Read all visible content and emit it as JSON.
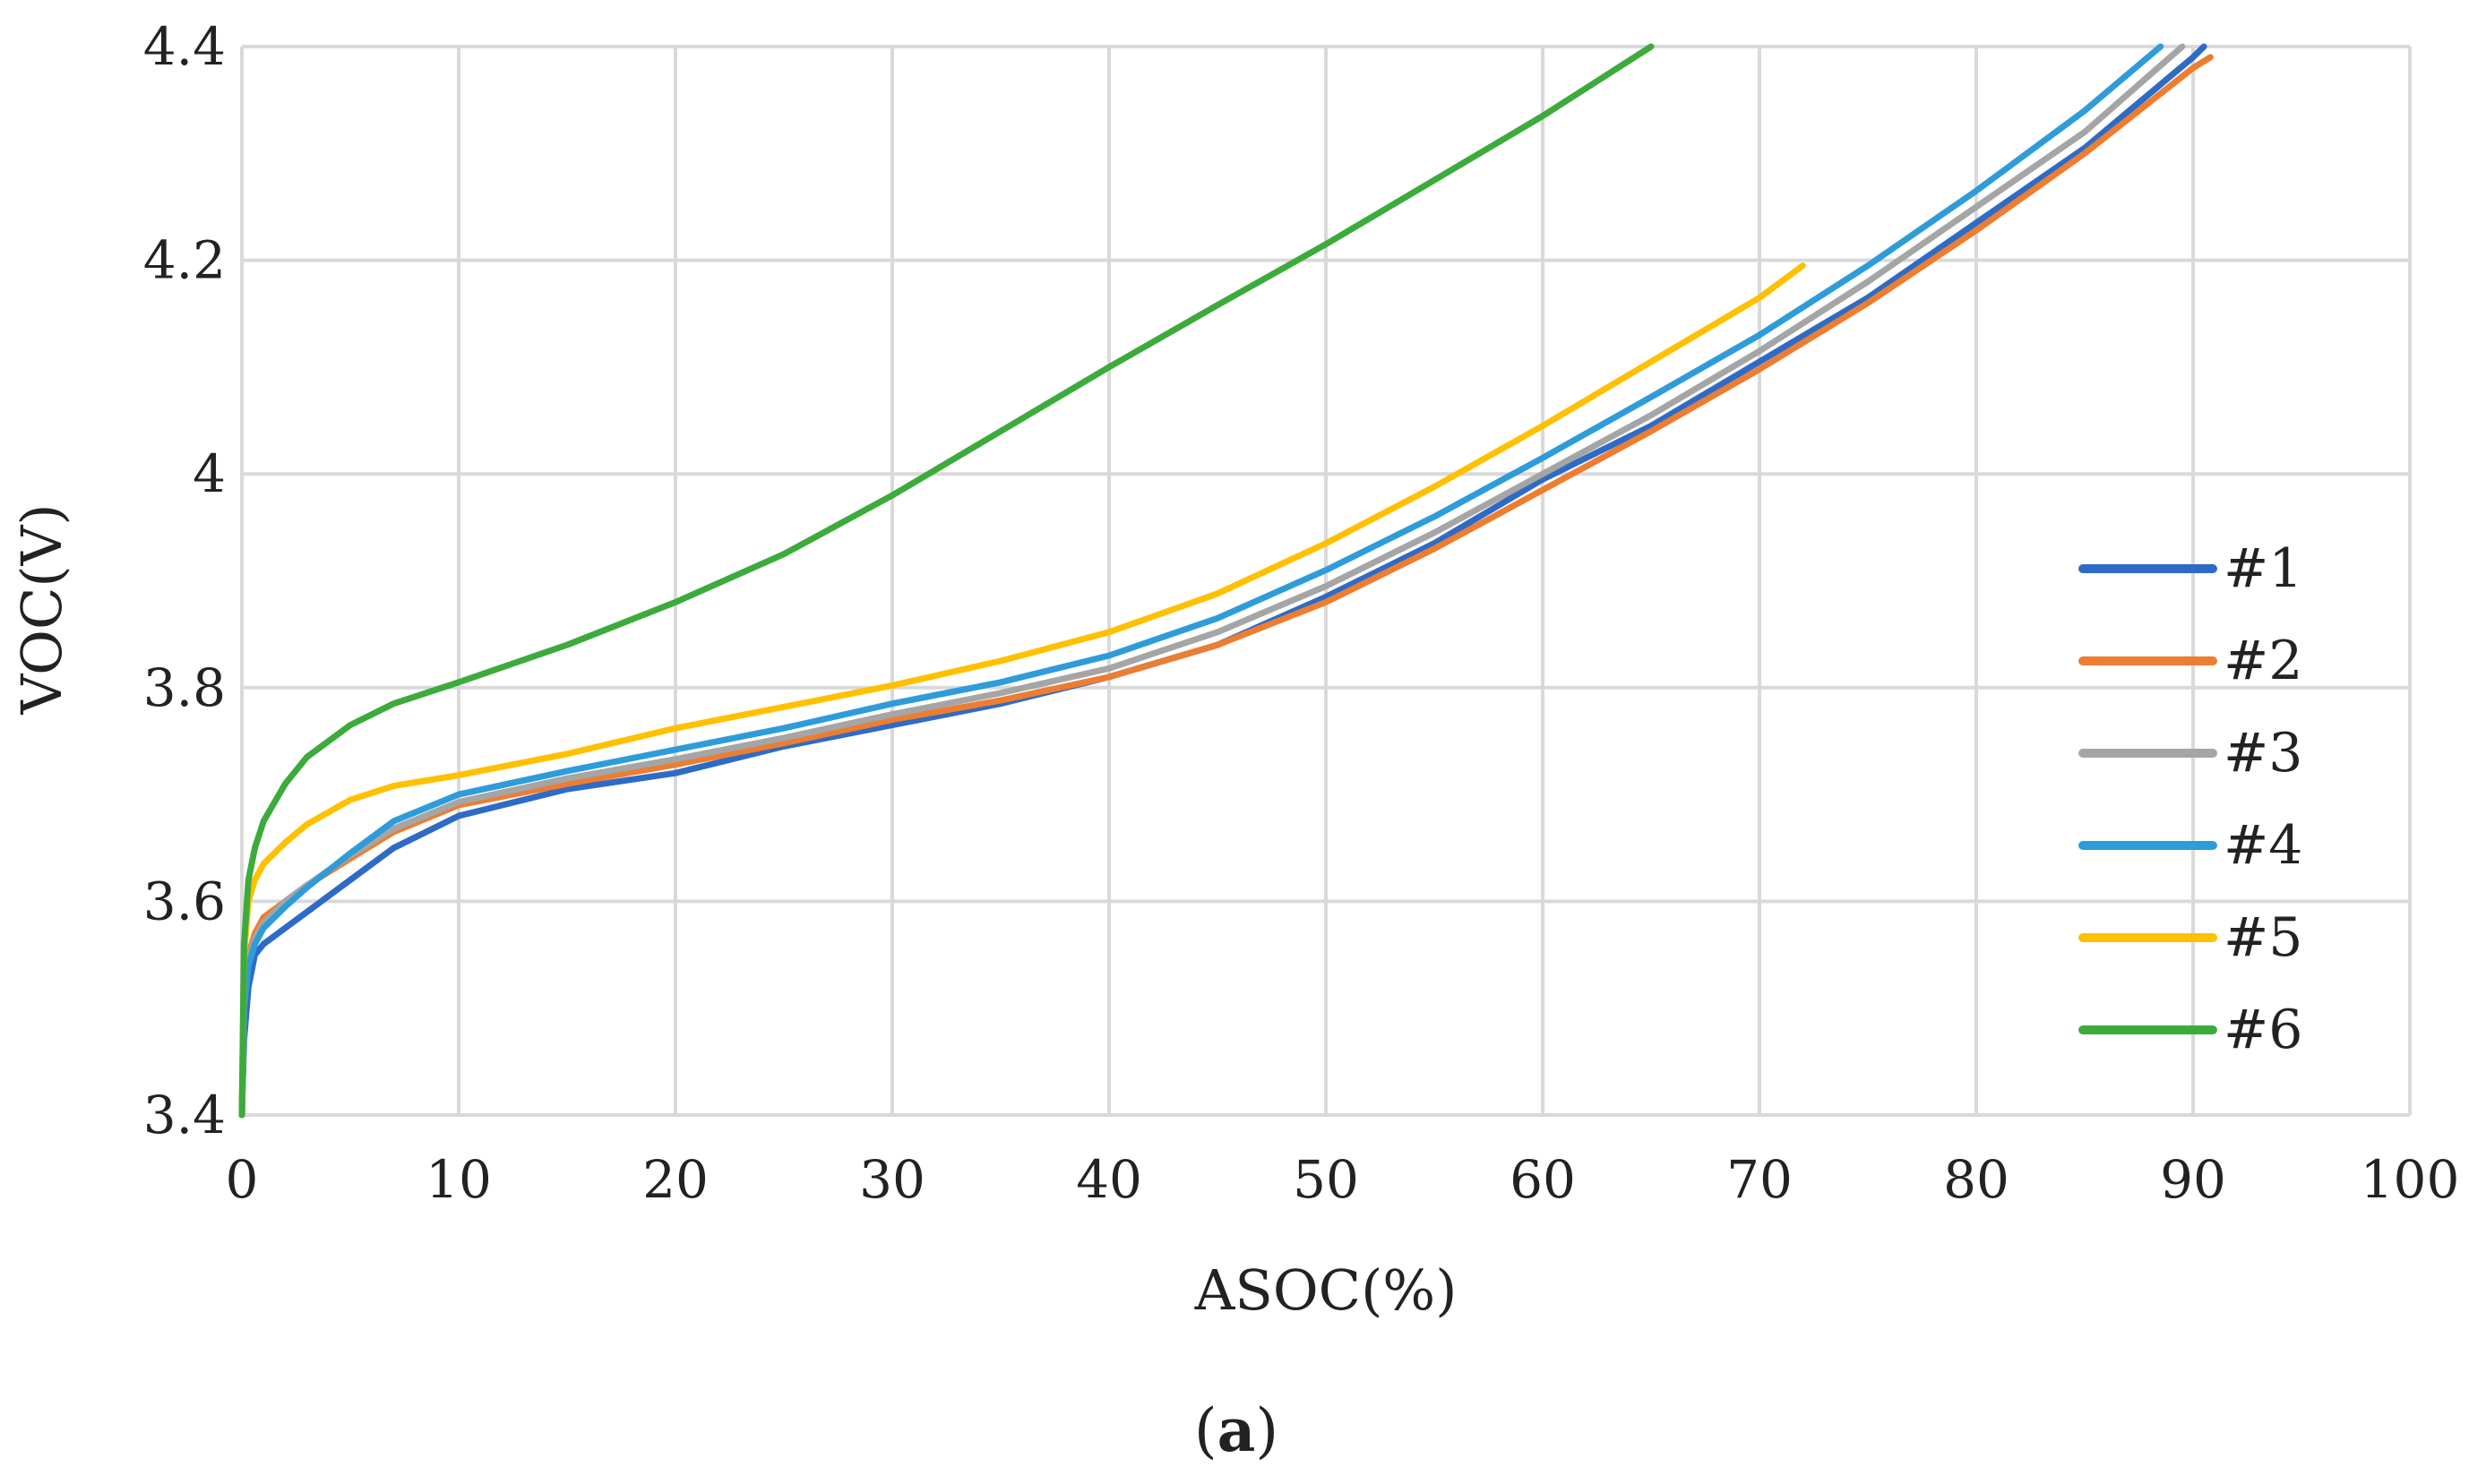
{
  "chart_data": {
    "type": "line",
    "title": "",
    "xlabel": "ASOC(%)",
    "ylabel": "VOC(V)",
    "xlim": [
      0,
      100
    ],
    "ylim": [
      3.4,
      4.4
    ],
    "x_ticks": [
      0,
      10,
      20,
      30,
      40,
      50,
      60,
      70,
      80,
      90,
      100
    ],
    "y_ticks": [
      3.4,
      3.6,
      3.8,
      4,
      4.2,
      4.4
    ],
    "x_tick_labels": [
      "0",
      "10",
      "20",
      "30",
      "40",
      "50",
      "60",
      "70",
      "80",
      "90",
      "100"
    ],
    "y_tick_labels": [
      "3.4",
      "3.6",
      "3.8",
      "4",
      "4.2",
      "4.4"
    ],
    "grid": true,
    "legend_position": "right",
    "caption_open": "(",
    "caption_letter": "a",
    "caption_close": ")",
    "series": [
      {
        "name": "#1",
        "color": "#2e6bc6",
        "x": [
          0,
          0.1,
          0.3,
          0.6,
          1,
          2,
          3,
          5,
          7,
          10,
          15,
          20,
          25,
          30,
          35,
          40,
          45,
          50,
          55,
          60,
          65,
          70,
          75,
          80,
          85,
          90,
          90.5
        ],
        "y": [
          3.4,
          3.47,
          3.52,
          3.55,
          3.56,
          3.575,
          3.59,
          3.62,
          3.65,
          3.68,
          3.705,
          3.72,
          3.745,
          3.765,
          3.785,
          3.81,
          3.84,
          3.885,
          3.935,
          3.995,
          4.045,
          4.105,
          4.165,
          4.235,
          4.305,
          4.39,
          4.4
        ]
      },
      {
        "name": "#2",
        "color": "#ed7d31",
        "x": [
          0,
          0.1,
          0.3,
          0.6,
          1,
          2,
          3,
          5,
          7,
          10,
          15,
          20,
          25,
          30,
          35,
          40,
          45,
          50,
          55,
          60,
          65,
          70,
          75,
          80,
          85,
          90,
          90.8
        ],
        "y": [
          3.4,
          3.5,
          3.55,
          3.57,
          3.585,
          3.6,
          3.615,
          3.64,
          3.665,
          3.69,
          3.71,
          3.728,
          3.748,
          3.77,
          3.788,
          3.81,
          3.84,
          3.88,
          3.93,
          3.985,
          4.04,
          4.098,
          4.16,
          4.228,
          4.3,
          4.38,
          4.39
        ]
      },
      {
        "name": "#3",
        "color": "#a5a5a5",
        "x": [
          0,
          0.1,
          0.3,
          0.6,
          1,
          2,
          3,
          5,
          7,
          10,
          15,
          20,
          25,
          30,
          35,
          40,
          45,
          50,
          55,
          60,
          65,
          70,
          75,
          80,
          85,
          89.5
        ],
        "y": [
          3.4,
          3.5,
          3.545,
          3.565,
          3.58,
          3.6,
          3.615,
          3.643,
          3.668,
          3.693,
          3.715,
          3.733,
          3.753,
          3.775,
          3.795,
          3.818,
          3.852,
          3.895,
          3.945,
          4.0,
          4.055,
          4.115,
          4.18,
          4.25,
          4.32,
          4.4
        ]
      },
      {
        "name": "#4",
        "color": "#2e9cd9",
        "x": [
          0,
          0.1,
          0.3,
          0.6,
          1,
          2,
          3,
          5,
          7,
          10,
          15,
          20,
          25,
          30,
          35,
          40,
          45,
          50,
          55,
          60,
          65,
          70,
          75,
          80,
          85,
          88.5
        ],
        "y": [
          3.4,
          3.5,
          3.54,
          3.56,
          3.575,
          3.595,
          3.613,
          3.645,
          3.675,
          3.7,
          3.722,
          3.742,
          3.762,
          3.785,
          3.805,
          3.83,
          3.865,
          3.91,
          3.96,
          4.015,
          4.072,
          4.13,
          4.195,
          4.265,
          4.34,
          4.4
        ]
      },
      {
        "name": "#5",
        "color": "#ffc000",
        "x": [
          0,
          0.1,
          0.3,
          0.6,
          1,
          2,
          3,
          5,
          7,
          10,
          15,
          20,
          25,
          30,
          35,
          40,
          45,
          50,
          55,
          60,
          65,
          70,
          72
        ],
        "y": [
          3.4,
          3.55,
          3.6,
          3.62,
          3.635,
          3.655,
          3.672,
          3.695,
          3.708,
          3.718,
          3.738,
          3.762,
          3.782,
          3.802,
          3.825,
          3.852,
          3.888,
          3.935,
          3.988,
          4.045,
          4.105,
          4.165,
          4.195
        ]
      },
      {
        "name": "#6",
        "color": "#3cab3c",
        "x": [
          0,
          0.1,
          0.3,
          0.6,
          1,
          2,
          3,
          5,
          7,
          10,
          15,
          20,
          25,
          30,
          35,
          40,
          45,
          50,
          55,
          60,
          65
        ],
        "y": [
          3.4,
          3.56,
          3.62,
          3.65,
          3.675,
          3.71,
          3.735,
          3.765,
          3.785,
          3.805,
          3.84,
          3.88,
          3.925,
          3.98,
          4.04,
          4.1,
          4.158,
          4.215,
          4.275,
          4.335,
          4.4
        ]
      }
    ]
  }
}
